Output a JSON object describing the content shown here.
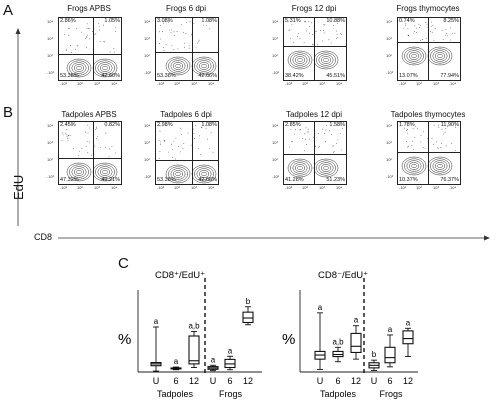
{
  "panel_labels": {
    "a": "A",
    "b": "B",
    "c": "C"
  },
  "axes": {
    "y": "EdU",
    "x": "CD8"
  },
  "tick_labels": {
    "x": [
      "-10²",
      "10²",
      "10³",
      "10⁴"
    ],
    "y": [
      "10⁴",
      "10³",
      "10²",
      "-10²"
    ]
  },
  "flow_plots": [
    {
      "title": "Frogs APBS",
      "q": [
        "2.86%",
        "1.05%",
        "53.38%",
        "42.60%"
      ]
    },
    {
      "title": "Frogs 6 dpi",
      "q": [
        "3.08%",
        "1.08%",
        "53.38%",
        "42.66%"
      ]
    },
    {
      "title": "Frogs 12 dpi",
      "q": [
        "5.31%",
        "10.88%",
        "38.42%",
        "45.51%"
      ]
    },
    {
      "title": "Frogs thymocytes",
      "q": [
        "0.74%",
        "8.25%",
        "13.07%",
        "77.94%"
      ]
    },
    {
      "title": "Tadpoles APBS",
      "q": [
        "2.45%",
        "0.82%",
        "47.32%",
        "49.21%"
      ]
    },
    {
      "title": "Tadpoles 6 dpi",
      "q": [
        "2.98%",
        "1.08%",
        "53.38%",
        "42.66%"
      ]
    },
    {
      "title": "Tadpoles 12 dpi",
      "q": [
        "2.85%",
        "1.58%",
        "41.28%",
        "51.23%"
      ]
    },
    {
      "title": "Tadpoles thymocytes",
      "q": [
        "1.78%",
        "11.90%",
        "10.37%",
        "76.37%"
      ]
    }
  ],
  "chart_data": [
    {
      "type": "box",
      "title": "CD8⁺/EdU⁺",
      "ylabel": "%",
      "categories": [
        "U",
        "6",
        "12",
        "U",
        "6",
        "12"
      ],
      "groups": [
        "Tadpoles",
        "Frogs"
      ],
      "boxes": [
        {
          "min": 0.2,
          "q1": 1.4,
          "median": 1.8,
          "q3": 2.1,
          "max": 10.0,
          "letter": "a"
        },
        {
          "min": 0.5,
          "q1": 0.7,
          "median": 0.8,
          "q3": 0.9,
          "max": 1.1,
          "letter": "a"
        },
        {
          "min": 1.0,
          "q1": 1.8,
          "median": 2.5,
          "q3": 8.0,
          "max": 9.0,
          "letter": "a,b"
        },
        {
          "min": 0.3,
          "q1": 0.6,
          "median": 0.9,
          "q3": 1.2,
          "max": 1.5,
          "letter": "a"
        },
        {
          "min": 0.5,
          "q1": 1.0,
          "median": 1.8,
          "q3": 2.8,
          "max": 3.5,
          "letter": "a"
        },
        {
          "min": 10.5,
          "q1": 11.0,
          "median": 12.0,
          "q3": 13.3,
          "max": 14.5,
          "letter": "b"
        }
      ],
      "ylim": [
        0,
        16
      ]
    },
    {
      "type": "box",
      "title": "CD8⁻/EdU⁺",
      "ylabel": "%",
      "categories": [
        "U",
        "6",
        "12",
        "U",
        "6",
        "12"
      ],
      "groups": [
        "Tadpoles",
        "Frogs"
      ],
      "boxes": [
        {
          "min": 0.5,
          "q1": 2.5,
          "median": 3.3,
          "q3": 4.0,
          "max": 11.5,
          "letter": "a"
        },
        {
          "min": 2.0,
          "q1": 3.0,
          "median": 3.4,
          "q3": 4.0,
          "max": 4.8,
          "letter": "a,b"
        },
        {
          "min": 2.5,
          "q1": 3.8,
          "median": 5.0,
          "q3": 7.5,
          "max": 9.0,
          "letter": "a"
        },
        {
          "min": 0.3,
          "q1": 0.8,
          "median": 1.3,
          "q3": 1.8,
          "max": 2.3,
          "letter": "b"
        },
        {
          "min": 1.0,
          "q1": 1.8,
          "median": 2.8,
          "q3": 4.8,
          "max": 7.2,
          "letter": "a"
        },
        {
          "min": 3.0,
          "q1": 5.5,
          "median": 6.5,
          "q3": 8.0,
          "max": 8.5,
          "letter": "a"
        }
      ],
      "ylim": [
        0,
        14
      ]
    }
  ]
}
